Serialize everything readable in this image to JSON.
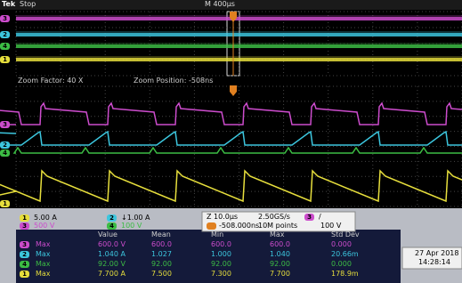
{
  "status": {
    "logo": "Tek",
    "state": "Stop",
    "timebase": "M 400µs"
  },
  "zoom": {
    "factor": "Zoom Factor: 40 X",
    "position": "Zoom Position: -508ns"
  },
  "channels": [
    {
      "number": "1",
      "scale": "5.00 A",
      "color": "#e6de3c"
    },
    {
      "number": "2",
      "scale": "↓1.00 A",
      "color": "#3cc6de"
    },
    {
      "number": "3",
      "scale": "500 V",
      "color": "#cc4ccc"
    },
    {
      "number": "4",
      "scale": "100 V",
      "color": "#3cbc44"
    }
  ],
  "acquisition": {
    "zoom_scale": "Z 10.0µs",
    "sample_rate": "2.50GS/s",
    "trigger_position": "-508.000ns",
    "record_length": "10M points"
  },
  "trigger": {
    "source": "3",
    "slope": "/",
    "level": "100 V"
  },
  "measurements": {
    "headers": [
      "Value",
      "Mean",
      "Min",
      "Max",
      "Std Dev"
    ],
    "rows": [
      {
        "channel": "3",
        "type": "Max",
        "values": [
          "600.0 V",
          "600.0",
          "600.0",
          "600.0",
          "0.000"
        ]
      },
      {
        "channel": "2",
        "type": "Max",
        "values": [
          "1.040 A",
          "1.027",
          "1.000",
          "1.040",
          "20.66m"
        ]
      },
      {
        "channel": "4",
        "type": "Max",
        "values": [
          "92.00 V",
          "92.00",
          "92.00",
          "92.00",
          "0.000"
        ]
      },
      {
        "channel": "1",
        "type": "Max",
        "values": [
          "7.700 A",
          "7.500",
          "7.300",
          "7.700",
          "178.9m"
        ]
      }
    ]
  },
  "datetime": {
    "date": "27 Apr 2018",
    "time": "14:28:14"
  }
}
